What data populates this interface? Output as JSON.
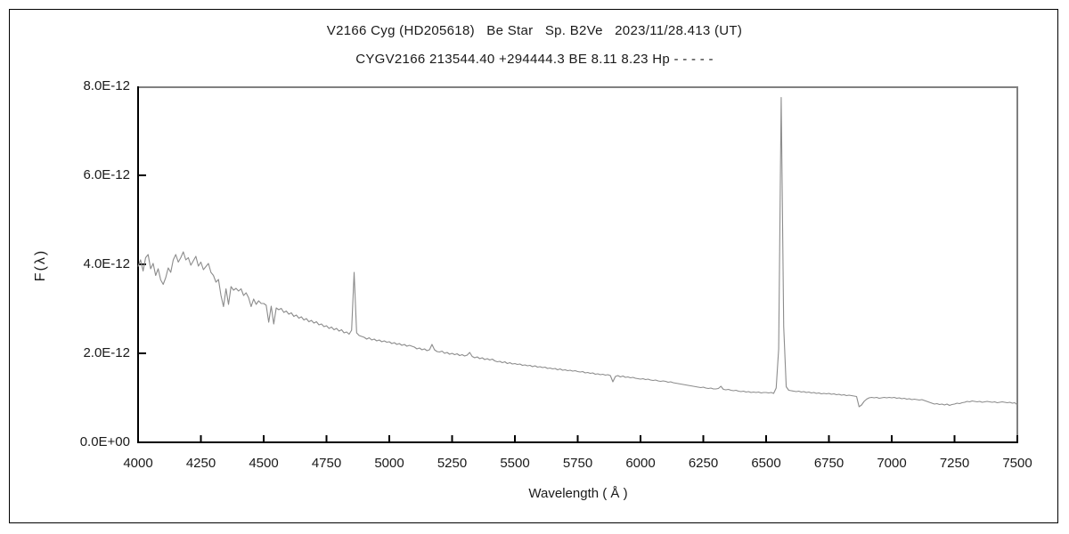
{
  "colors": {
    "background": "#ffffff",
    "text": "#1a1a1a",
    "axis": "#000000",
    "frame": "#808080",
    "line": "#8c8c8c",
    "image_border": "#000000"
  },
  "chart_data": {
    "type": "line",
    "title": "V2166 Cyg (HD205618)   Be Star   Sp. B2Ve   2023/11/28.413 (UT)",
    "subtitle": "CYGV2166 213544.40 +294444.3 BE 8.11 8.23 Hp - - - - -",
    "xlabel": "Wavelength ( Å )",
    "ylabel": "F(λ)",
    "xlim": [
      4000,
      7500
    ],
    "ylim": [
      0,
      8e-12
    ],
    "grid": false,
    "legend": "none",
    "x_ticks": [
      4000,
      4250,
      4500,
      4750,
      5000,
      5250,
      5500,
      5750,
      6000,
      6250,
      6500,
      6750,
      7000,
      7250,
      7500
    ],
    "y_tick_values_1e12": [
      0,
      2,
      4,
      6,
      8
    ],
    "y_tick_labels": [
      "0.0E+00",
      "2.0E-12",
      "4.0E-12",
      "6.0E-12",
      "8.0E-12"
    ],
    "notable_features": [
      {
        "type": "emission-peak",
        "wavelength_A": 4861,
        "peak_flux": "3.8E-12"
      },
      {
        "type": "emission-peak",
        "wavelength_A": 6563,
        "peak_flux": "7.8E-12"
      },
      {
        "type": "absorption-dip",
        "wavelength_A": 6870,
        "min_flux": "0.8E-12"
      },
      {
        "type": "absorption-dip",
        "wavelength_A": 7200,
        "min_flux": "0.85E-12"
      }
    ],
    "series": [
      {
        "name": "flux-spectrum",
        "x_start": 4000,
        "x_step": 10,
        "flux_scale": 1e-12,
        "flux_1e12": [
          3.95,
          4.1,
          3.85,
          4.15,
          4.22,
          3.9,
          4.02,
          3.75,
          3.9,
          3.65,
          3.55,
          3.7,
          3.92,
          3.82,
          4.1,
          4.22,
          4.05,
          4.15,
          4.28,
          4.1,
          4.15,
          3.98,
          4.08,
          4.18,
          3.96,
          4.05,
          3.88,
          3.95,
          4.02,
          3.82,
          3.75,
          3.6,
          3.66,
          3.3,
          3.05,
          3.45,
          3.1,
          3.5,
          3.42,
          3.46,
          3.4,
          3.45,
          3.3,
          3.36,
          3.25,
          3.05,
          3.22,
          3.1,
          3.18,
          3.12,
          3.12,
          3.08,
          2.7,
          3.06,
          2.66,
          3.02,
          2.98,
          3.01,
          2.92,
          2.95,
          2.88,
          2.91,
          2.83,
          2.86,
          2.79,
          2.82,
          2.75,
          2.78,
          2.71,
          2.74,
          2.68,
          2.71,
          2.64,
          2.66,
          2.6,
          2.62,
          2.56,
          2.59,
          2.53,
          2.56,
          2.5,
          2.53,
          2.46,
          2.48,
          2.43,
          2.52,
          3.82,
          2.46,
          2.4,
          2.38,
          2.36,
          2.32,
          2.35,
          2.3,
          2.32,
          2.28,
          2.3,
          2.26,
          2.28,
          2.25,
          2.26,
          2.22,
          2.24,
          2.2,
          2.22,
          2.18,
          2.2,
          2.16,
          2.18,
          2.16,
          2.14,
          2.1,
          2.12,
          2.08,
          2.1,
          2.06,
          2.08,
          2.2,
          2.08,
          2.04,
          2.03,
          2.05,
          2.0,
          2.02,
          1.98,
          2.0,
          1.97,
          1.99,
          1.95,
          1.97,
          1.94,
          1.96,
          2.02,
          1.93,
          1.9,
          1.92,
          1.88,
          1.9,
          1.86,
          1.88,
          1.85,
          1.87,
          1.83,
          1.81,
          1.82,
          1.79,
          1.81,
          1.77,
          1.79,
          1.76,
          1.77,
          1.75,
          1.76,
          1.73,
          1.74,
          1.72,
          1.73,
          1.7,
          1.72,
          1.69,
          1.7,
          1.68,
          1.69,
          1.66,
          1.67,
          1.65,
          1.66,
          1.63,
          1.65,
          1.62,
          1.63,
          1.61,
          1.62,
          1.6,
          1.61,
          1.59,
          1.58,
          1.59,
          1.56,
          1.57,
          1.55,
          1.56,
          1.53,
          1.54,
          1.52,
          1.53,
          1.51,
          1.52,
          1.5,
          1.36,
          1.48,
          1.5,
          1.47,
          1.49,
          1.46,
          1.47,
          1.45,
          1.46,
          1.44,
          1.43,
          1.42,
          1.43,
          1.41,
          1.42,
          1.4,
          1.39,
          1.4,
          1.38,
          1.37,
          1.38,
          1.37,
          1.35,
          1.36,
          1.34,
          1.33,
          1.32,
          1.31,
          1.3,
          1.29,
          1.28,
          1.27,
          1.26,
          1.25,
          1.24,
          1.23,
          1.24,
          1.22,
          1.21,
          1.22,
          1.2,
          1.2,
          1.21,
          1.26,
          1.19,
          1.18,
          1.19,
          1.17,
          1.16,
          1.17,
          1.15,
          1.14,
          1.15,
          1.13,
          1.14,
          1.12,
          1.13,
          1.12,
          1.13,
          1.11,
          1.12,
          1.12,
          1.11,
          1.12,
          1.1,
          1.22,
          2.1,
          7.75,
          2.6,
          1.25,
          1.17,
          1.16,
          1.15,
          1.14,
          1.15,
          1.13,
          1.14,
          1.12,
          1.13,
          1.11,
          1.12,
          1.1,
          1.11,
          1.09,
          1.1,
          1.09,
          1.1,
          1.08,
          1.09,
          1.07,
          1.08,
          1.06,
          1.07,
          1.05,
          1.06,
          1.05,
          1.04,
          1.03,
          0.8,
          0.84,
          0.92,
          0.97,
          1.0,
          1.01,
          1.0,
          1.01,
          0.99,
          1.0,
          1.01,
          1.0,
          1.01,
          1.0,
          1.01,
          0.99,
          1.0,
          0.98,
          0.99,
          0.97,
          0.98,
          0.96,
          0.97,
          0.96,
          0.95,
          0.96,
          0.94,
          0.92,
          0.9,
          0.88,
          0.86,
          0.87,
          0.85,
          0.86,
          0.84,
          0.86,
          0.83,
          0.85,
          0.86,
          0.88,
          0.87,
          0.89,
          0.9,
          0.92,
          0.91,
          0.93,
          0.92,
          0.91,
          0.92,
          0.9,
          0.91,
          0.92,
          0.91,
          0.9,
          0.91,
          0.89,
          0.9,
          0.91,
          0.9,
          0.89,
          0.9,
          0.88,
          0.89,
          0.84
        ]
      }
    ]
  }
}
